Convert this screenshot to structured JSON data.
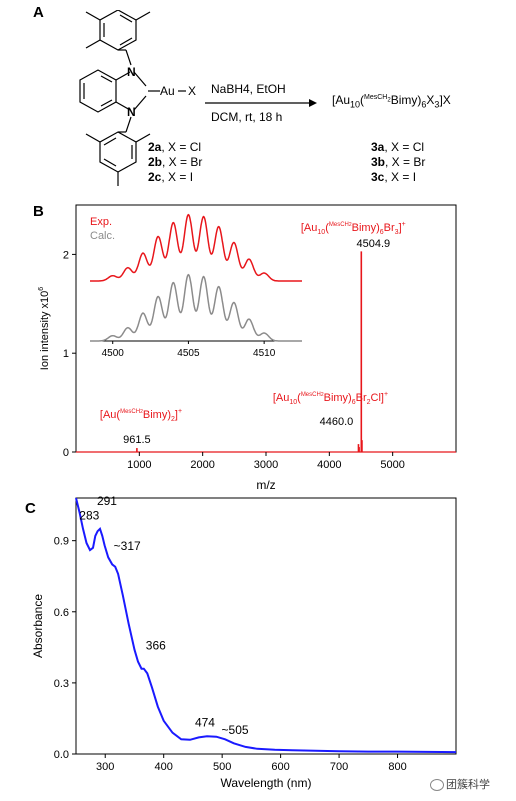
{
  "panels": {
    "a": "A",
    "b": "B",
    "c": "C"
  },
  "scheme": {
    "reagent_top": "NaBH4, EtOH",
    "reagent_bottom": "DCM, rt, 18 h",
    "reactant_atoms": [
      "N",
      "N",
      "Au",
      "X"
    ],
    "product": "[Au10(MesCH2Bimy)6X3]X",
    "reactants": [
      {
        "id": "2a",
        "desc": ", X = Cl"
      },
      {
        "id": "2b",
        "desc": ", X = Br"
      },
      {
        "id": "2c",
        "desc": ", X = I"
      }
    ],
    "products": [
      {
        "id": "3a",
        "desc": ", X = Cl"
      },
      {
        "id": "3b",
        "desc": ", X = Br"
      },
      {
        "id": "3c",
        "desc": ", X = I"
      }
    ]
  },
  "colors": {
    "ms_exp": "#e8161b",
    "ms_calc": "#8c8c8c",
    "uvvis": "#1a1aff",
    "axis": "#000000"
  },
  "chart_data": [
    {
      "type": "line",
      "panel": "B",
      "xlabel": "m/z",
      "ylabel": "Ion intensity x10^6",
      "xlim": [
        0,
        6000
      ],
      "ylim": [
        0,
        2.5
      ],
      "xticks": [
        1000,
        2000,
        3000,
        4000,
        5000
      ],
      "yticks": [
        0,
        1,
        2
      ],
      "series": [
        {
          "points": [
            [
              961.5,
              0.04
            ],
            [
              4460.0,
              0.08
            ],
            [
              4470,
              0.05
            ],
            [
              4504.9,
              2.03
            ],
            [
              4515,
              0.12
            ]
          ]
        }
      ],
      "annotations": [
        {
          "label": "[Au(MesCH2Bimy)2]+",
          "value": "961.5",
          "x": 961.5
        },
        {
          "label": "[Au10(MesCH2Bimy)6Br2Cl]+",
          "value": "4460.0",
          "x": 4460.0
        },
        {
          "label": "[Au10(MesCH2Bimy)6Br3]+",
          "value": "4504.9",
          "x": 4504.9
        }
      ],
      "inset": {
        "xlim": [
          4498.5,
          4512.5
        ],
        "xticks": [
          4500,
          4505,
          4510
        ],
        "legend": [
          "Exp.",
          "Calc."
        ],
        "peak_positions": [
          4500,
          4501,
          4502,
          4503,
          4504,
          4505,
          4506,
          4507,
          4508,
          4509,
          4510
        ],
        "relative_heights": [
          0.08,
          0.2,
          0.42,
          0.67,
          0.88,
          1.0,
          0.97,
          0.82,
          0.58,
          0.33,
          0.12
        ]
      }
    },
    {
      "type": "line",
      "panel": "C",
      "xlabel": "Wavelength (nm)",
      "ylabel": "Absorbance",
      "xlim": [
        250,
        900
      ],
      "ylim": [
        0,
        1.08
      ],
      "xticks": [
        300,
        400,
        500,
        600,
        700,
        800
      ],
      "yticks": [
        0.0,
        0.3,
        0.6,
        0.9
      ],
      "ytick_labels": [
        "0.0",
        "0.3",
        "0.6",
        "0.9"
      ],
      "series": [
        {
          "x": [
            250,
            256,
            262,
            268,
            274,
            279,
            283,
            287,
            291,
            295,
            299,
            305,
            312,
            317,
            322,
            330,
            340,
            350,
            356,
            362,
            366,
            372,
            380,
            390,
            400,
            415,
            430,
            445,
            460,
            474,
            490,
            505,
            520,
            540,
            560,
            590,
            620,
            660,
            700,
            750,
            800,
            850,
            900
          ],
          "y": [
            1.08,
            1.02,
            0.95,
            0.89,
            0.86,
            0.87,
            0.92,
            0.94,
            0.95,
            0.92,
            0.88,
            0.83,
            0.8,
            0.79,
            0.76,
            0.67,
            0.55,
            0.44,
            0.39,
            0.36,
            0.36,
            0.34,
            0.28,
            0.2,
            0.14,
            0.09,
            0.062,
            0.06,
            0.07,
            0.075,
            0.073,
            0.062,
            0.045,
            0.03,
            0.022,
            0.018,
            0.016,
            0.014,
            0.012,
            0.01,
            0.01,
            0.009,
            0.008
          ]
        }
      ],
      "annotations": [
        {
          "label": "283",
          "x": 283
        },
        {
          "label": "291",
          "x": 291
        },
        {
          "label": "~317",
          "x": 317
        },
        {
          "label": "366",
          "x": 366
        },
        {
          "label": "474",
          "x": 474
        },
        {
          "label": "~505",
          "x": 505
        }
      ]
    }
  ],
  "watermark": "团簇科学"
}
